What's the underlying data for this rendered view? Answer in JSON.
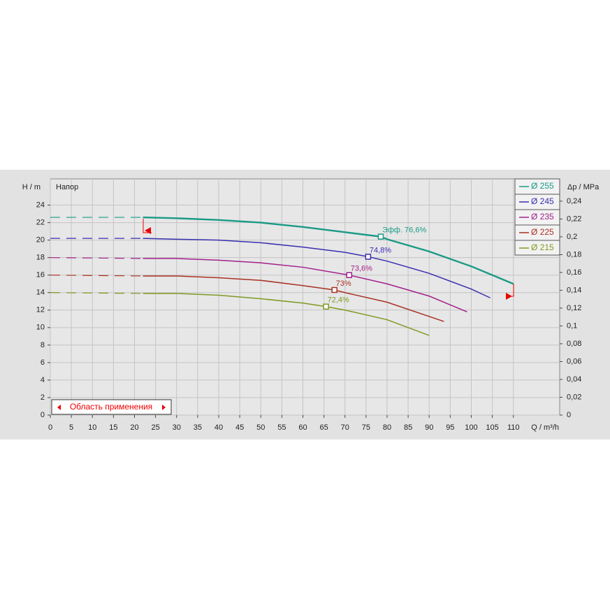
{
  "chart_data": {
    "type": "line",
    "y_label": "H / m",
    "y_title": "Напор",
    "y2_label": "Δp / MPa",
    "x_label": "Q / m³/h",
    "range_label": "Область применения",
    "xlim": [
      0,
      121
    ],
    "xticks": [
      0,
      5,
      10,
      15,
      20,
      25,
      30,
      35,
      40,
      45,
      50,
      55,
      60,
      65,
      70,
      75,
      80,
      85,
      90,
      95,
      100,
      105,
      110
    ],
    "ylim": [
      0,
      27
    ],
    "yticks": [
      0,
      2,
      4,
      6,
      8,
      10,
      12,
      14,
      16,
      18,
      20,
      22,
      24
    ],
    "y2lim": [
      0,
      0.265
    ],
    "y2ticks": [
      0,
      {
        "value": 0.02,
        "label": "0,02"
      },
      {
        "value": 0.04,
        "label": "0,04"
      },
      {
        "value": 0.06,
        "label": "0,06"
      },
      {
        "value": 0.08,
        "label": "0,08"
      },
      {
        "value": 0.1,
        "label": "0,1"
      },
      {
        "value": 0.12,
        "label": "0,12"
      },
      {
        "value": 0.14,
        "label": "0,14"
      },
      {
        "value": 0.16,
        "label": "0,16"
      },
      {
        "value": 0.18,
        "label": "0,18"
      },
      {
        "value": 0.2,
        "label": "0,2"
      },
      {
        "value": 0.22,
        "label": "0,22"
      },
      {
        "value": 0.24,
        "label": "0,24"
      }
    ],
    "grid": true,
    "dashed_below_x": 22,
    "legend": "top-right",
    "series": [
      {
        "name": "Ø 255",
        "color": "#1a9a86",
        "x": [
          0,
          22,
          30,
          40,
          50,
          60,
          70,
          78.5,
          80,
          90,
          100,
          110
        ],
        "values": [
          22.6,
          22.6,
          22.5,
          22.3,
          22.0,
          21.5,
          20.9,
          20.4,
          20.1,
          18.7,
          17.0,
          15.0
        ],
        "eff": {
          "x": 78.5,
          "value": 20.4,
          "label": "Эфф.  76,6%"
        }
      },
      {
        "name": "Ø 245",
        "color": "#3a2fb0",
        "x": [
          0,
          22,
          30,
          40,
          50,
          60,
          70,
          75.5,
          80,
          90,
          100,
          104.5
        ],
        "values": [
          20.2,
          20.2,
          20.1,
          20.0,
          19.7,
          19.2,
          18.6,
          18.1,
          17.6,
          16.2,
          14.4,
          13.4
        ],
        "eff": {
          "x": 75.5,
          "value": 18.1,
          "label": "74,8%"
        }
      },
      {
        "name": "Ø 235",
        "color": "#a2208c",
        "x": [
          0,
          22,
          30,
          40,
          50,
          60,
          71,
          80,
          90,
          99
        ],
        "values": [
          18.0,
          17.9,
          17.9,
          17.7,
          17.4,
          16.9,
          16.0,
          15.0,
          13.6,
          11.8
        ],
        "eff": {
          "x": 71,
          "value": 16.0,
          "label": "73,6%"
        }
      },
      {
        "name": "Ø 225",
        "color": "#a83222",
        "x": [
          0,
          22,
          30,
          40,
          50,
          60,
          67.5,
          70,
          80,
          93.5
        ],
        "values": [
          16.0,
          15.9,
          15.9,
          15.7,
          15.4,
          14.8,
          14.3,
          14.0,
          12.9,
          10.7
        ],
        "eff": {
          "x": 67.5,
          "value": 14.3,
          "label": "73%"
        }
      },
      {
        "name": "Ø 215",
        "color": "#7f9a22",
        "x": [
          0,
          22,
          30,
          40,
          50,
          60,
          65.5,
          70,
          80,
          90
        ],
        "values": [
          14.0,
          13.9,
          13.9,
          13.7,
          13.3,
          12.8,
          12.4,
          12.0,
          10.9,
          9.1
        ],
        "eff": {
          "x": 65.5,
          "value": 12.4,
          "label": "72,4%"
        }
      }
    ]
  }
}
